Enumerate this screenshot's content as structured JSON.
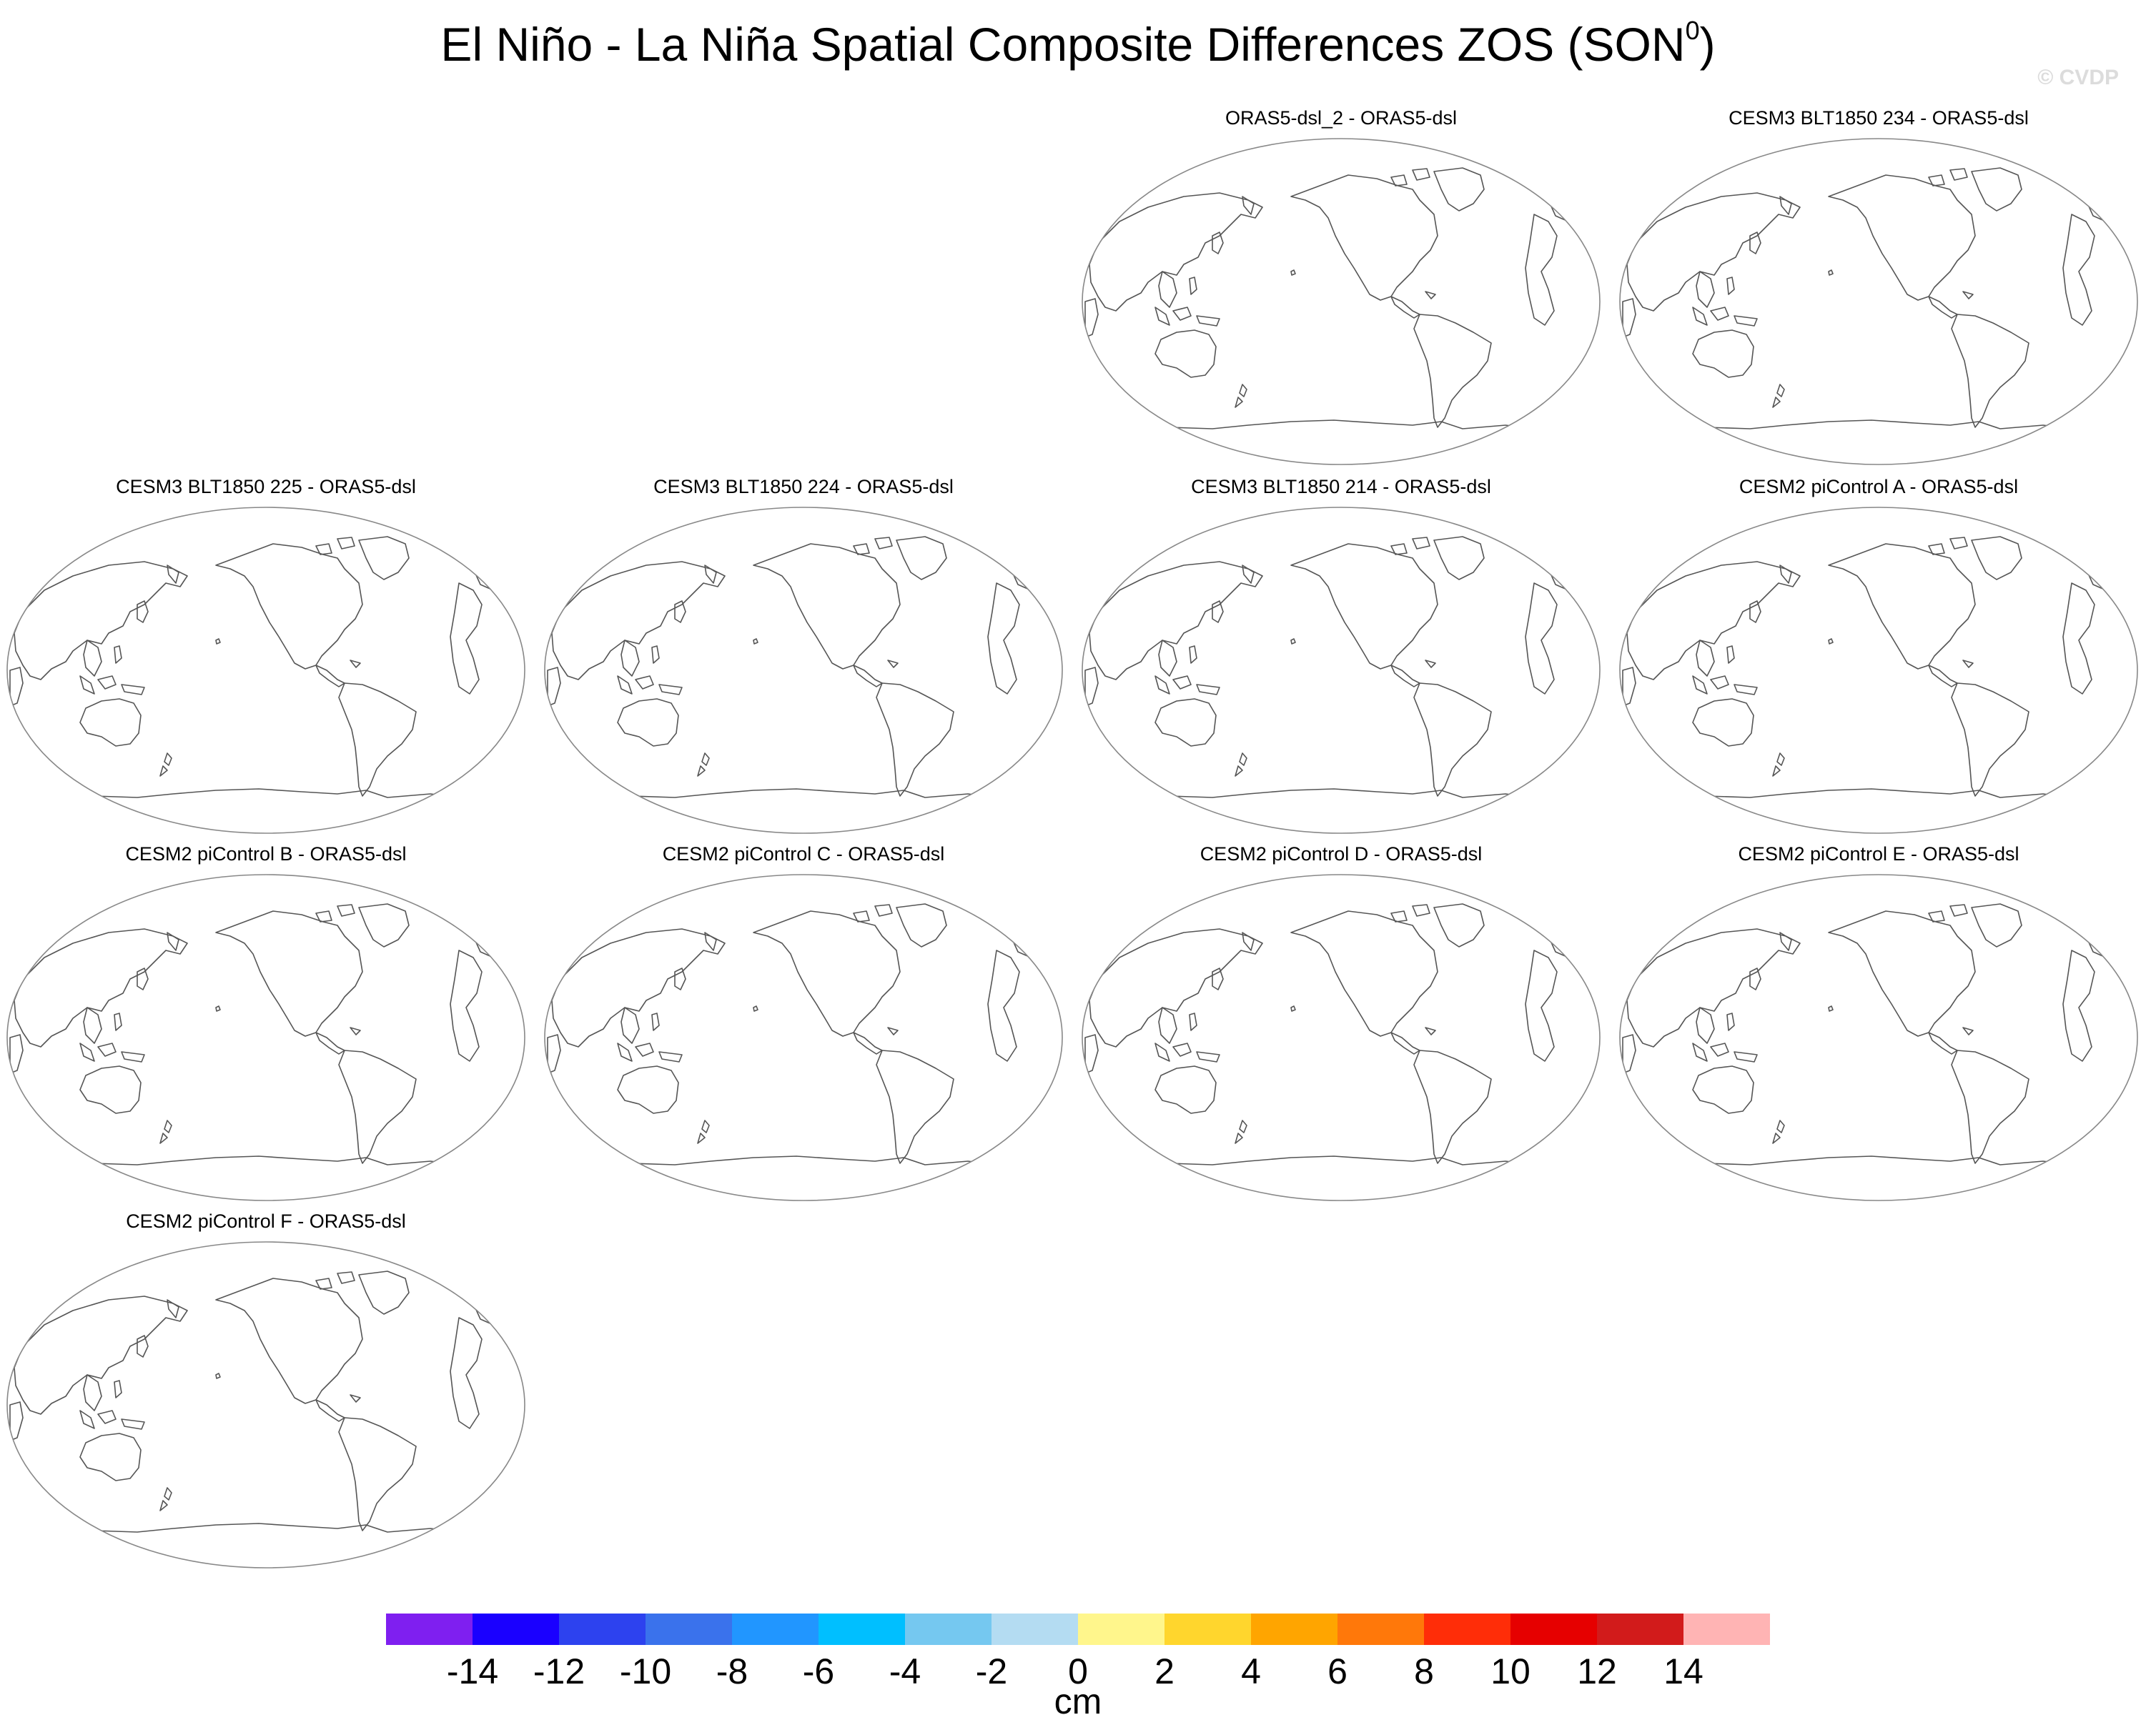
{
  "title": {
    "main": "El Niño - La Niña Spatial Composite Differences ZOS (SON",
    "sup": "0",
    "close": ")"
  },
  "watermark": "© CVDP",
  "panels": [
    {
      "title": "ORAS5-dsl_2 - ORAS5-dsl"
    },
    {
      "title": "CESM3 BLT1850 234 - ORAS5-dsl"
    },
    {
      "title": "CESM3 BLT1850 225 - ORAS5-dsl"
    },
    {
      "title": "CESM3 BLT1850 224 - ORAS5-dsl"
    },
    {
      "title": "CESM3 BLT1850 214 - ORAS5-dsl"
    },
    {
      "title": "CESM2 piControl A - ORAS5-dsl"
    },
    {
      "title": "CESM2 piControl B - ORAS5-dsl"
    },
    {
      "title": "CESM2 piControl C - ORAS5-dsl"
    },
    {
      "title": "CESM2 piControl D - ORAS5-dsl"
    },
    {
      "title": "CESM2 piControl E - ORAS5-dsl"
    },
    {
      "title": "CESM2 piControl F - ORAS5-dsl"
    }
  ],
  "colorbar": {
    "colors": [
      "#7f1ff0",
      "#1a00ff",
      "#2d42ef",
      "#3a72ec",
      "#2196ff",
      "#00bfff",
      "#75c8f0",
      "#b4dcf2",
      "#fff68c",
      "#ffd62d",
      "#ffa500",
      "#ff780a",
      "#ff2d08",
      "#e60000",
      "#d21b1b",
      "#ffb4b4"
    ],
    "ticks": [
      "-14",
      "-12",
      "-10",
      "-8",
      "-6",
      "-4",
      "-2",
      "0",
      "2",
      "4",
      "6",
      "8",
      "10",
      "12",
      "14"
    ],
    "units": "cm"
  }
}
